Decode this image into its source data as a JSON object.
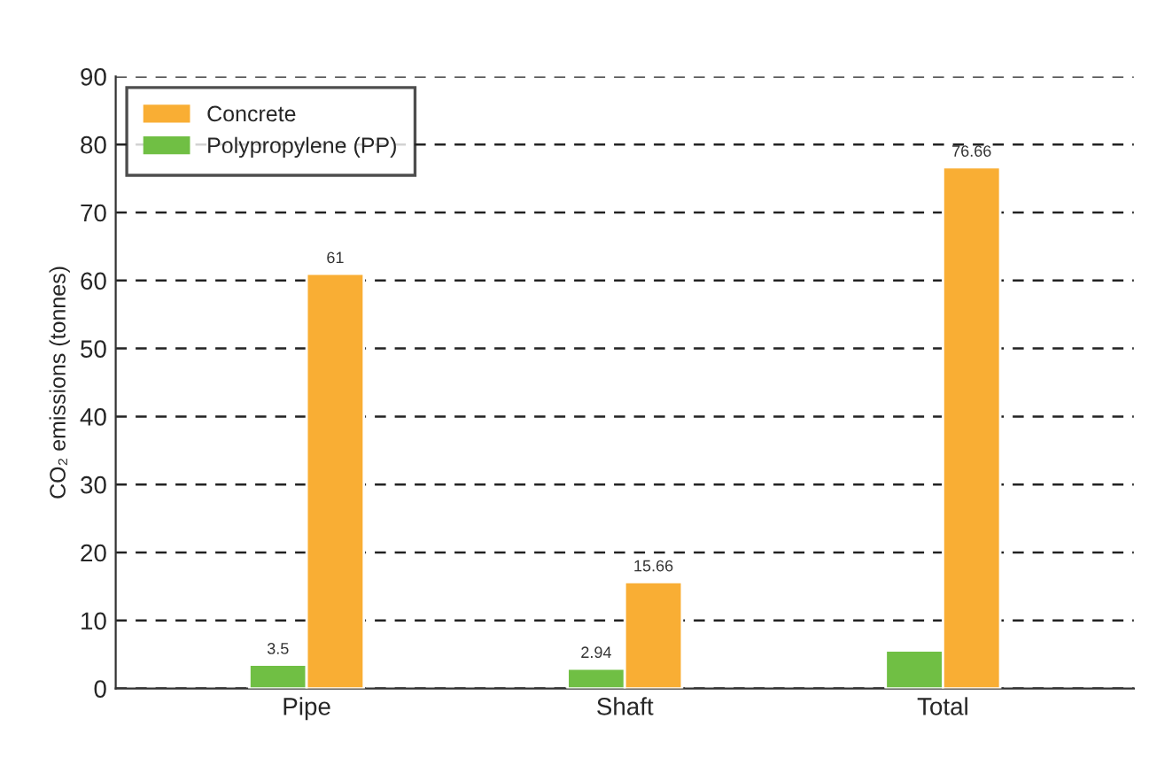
{
  "chart_data": {
    "type": "bar",
    "ylabel": "CO₂ emissions (tonnes)",
    "categories": [
      "Pipe",
      "Shaft",
      "Total"
    ],
    "series": [
      {
        "name": "Polypropylene (PP)",
        "color": "#70bf44",
        "values": [
          3.5,
          2.94,
          5.6
        ],
        "value_labels": [
          "3.5",
          "2.94",
          null
        ]
      },
      {
        "name": "Concrete",
        "color": "#f9ae34",
        "values": [
          61,
          15.66,
          76.66
        ],
        "value_labels": [
          "61",
          "15.66",
          "76.66"
        ]
      }
    ],
    "ylim": [
      0,
      90
    ],
    "yticks": [
      0,
      10,
      20,
      30,
      40,
      50,
      60,
      70,
      80,
      90
    ],
    "grid": "y",
    "legend": "top left"
  }
}
